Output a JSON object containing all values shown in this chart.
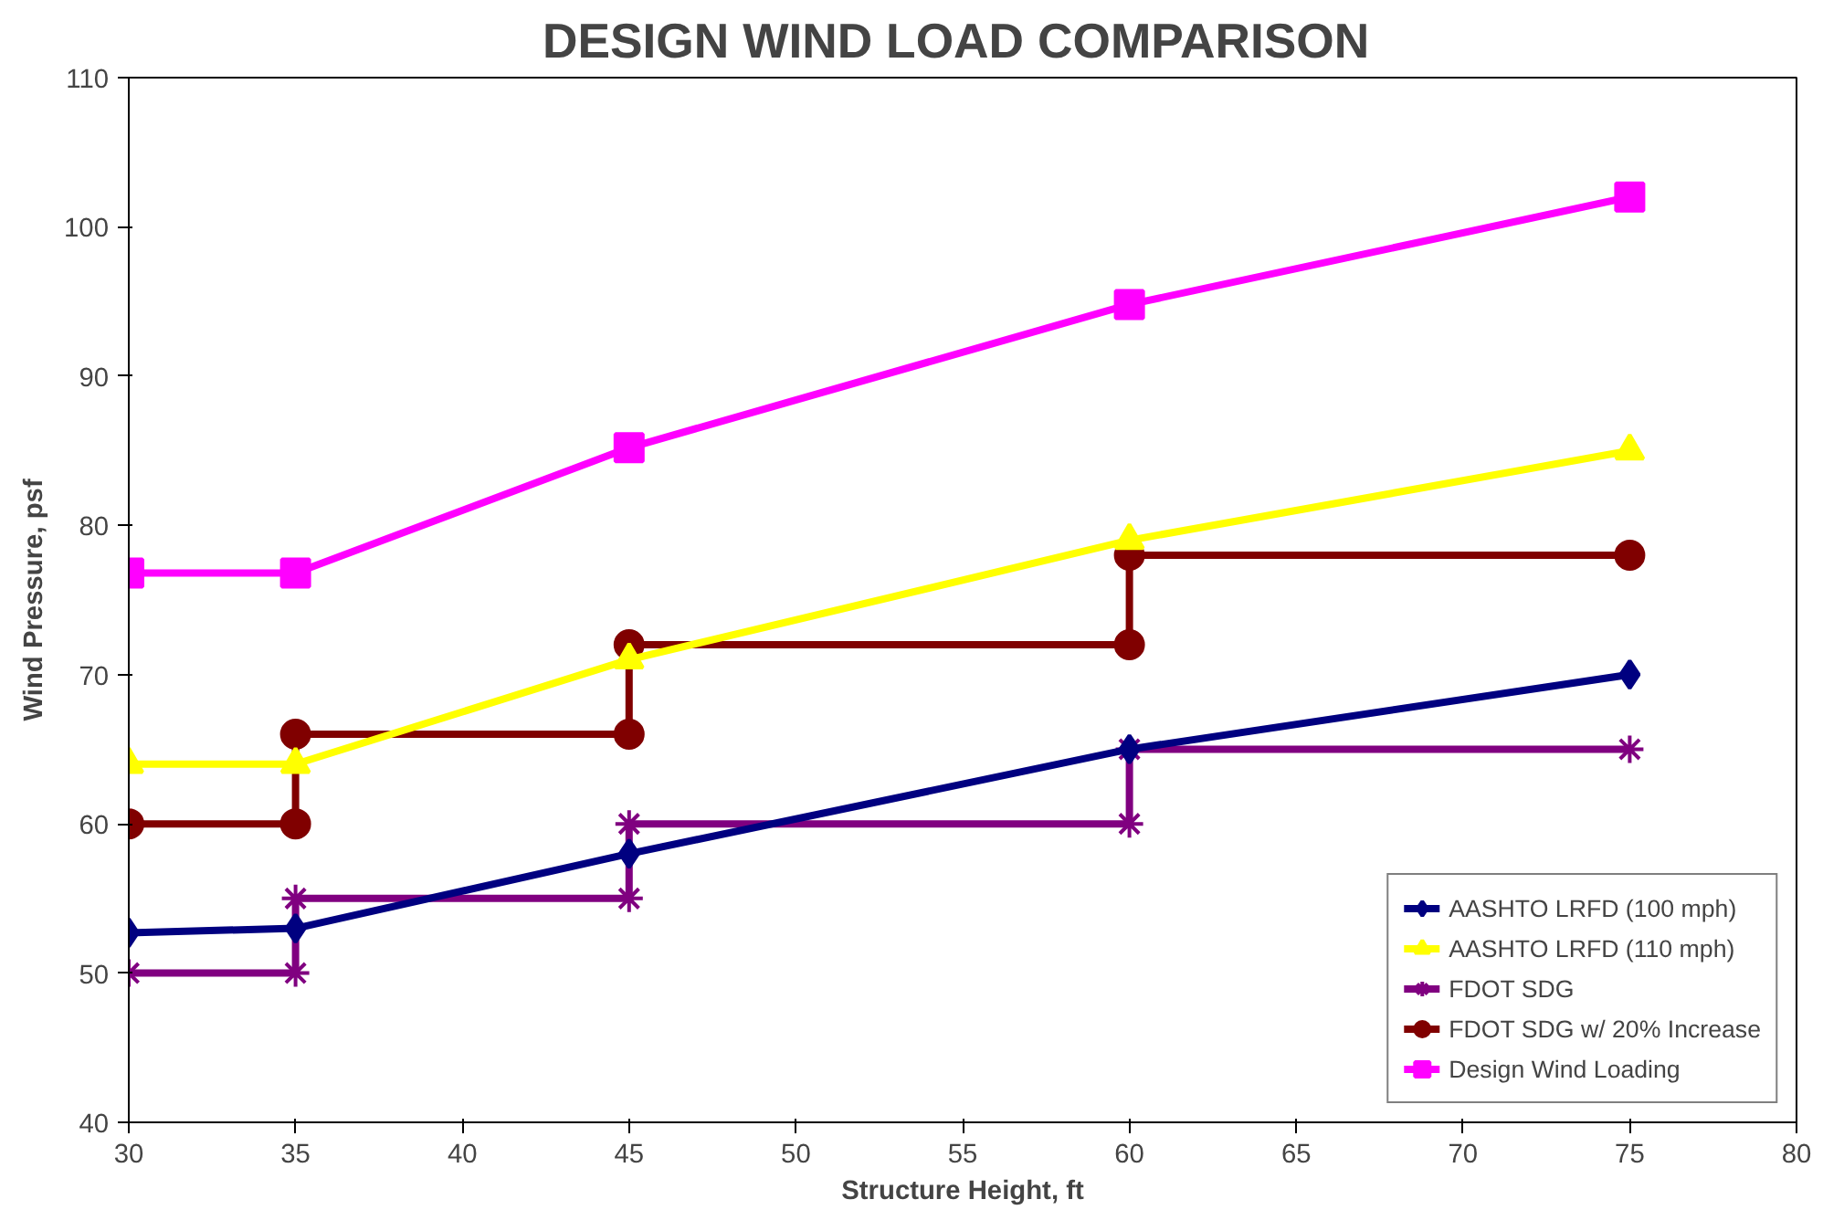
{
  "chart_data": {
    "type": "line",
    "title": "DESIGN  WIND LOAD COMPARISON",
    "xlabel": "Structure Height, ft",
    "ylabel": "Wind Pressure, psf",
    "xlim": [
      30,
      80
    ],
    "xticks": [
      30,
      35,
      40,
      45,
      50,
      55,
      60,
      65,
      70,
      75,
      80
    ],
    "ylim": [
      40,
      110
    ],
    "yticks": [
      40,
      50,
      60,
      70,
      80,
      90,
      100,
      110
    ],
    "grid": false,
    "legend": "bottom right",
    "series": [
      {
        "name": "AASHTO LRFD (100 mph)",
        "color": "#000080",
        "marker": "diamond",
        "x": [
          30,
          35,
          45,
          60,
          75
        ],
        "values": [
          52.7,
          53,
          58,
          65,
          70
        ]
      },
      {
        "name": "AASHTO LRFD (110 mph)",
        "color": "#ffff00",
        "marker": "triangle",
        "x": [
          30,
          35,
          45,
          60,
          75
        ],
        "values": [
          64,
          64,
          71,
          79,
          85
        ]
      },
      {
        "name": "FDOT SDG",
        "color": "#800080",
        "marker": "cross",
        "x": [
          30,
          35,
          35,
          45,
          45,
          60,
          60,
          75
        ],
        "values": [
          50,
          50,
          55,
          55,
          60,
          60,
          65,
          65
        ]
      },
      {
        "name": "FDOT SDG w/ 20% Increase",
        "color": "#800000",
        "marker": "circle",
        "x": [
          30,
          35,
          35,
          45,
          45,
          60,
          60,
          75
        ],
        "values": [
          60,
          60,
          66,
          66,
          72,
          72,
          78,
          78
        ]
      },
      {
        "name": "Design Wind Loading",
        "color": "#ff00ff",
        "marker": "square",
        "x": [
          30,
          35,
          45,
          60,
          75
        ],
        "values": [
          76.8,
          76.8,
          85.2,
          94.8,
          102
        ]
      }
    ]
  }
}
